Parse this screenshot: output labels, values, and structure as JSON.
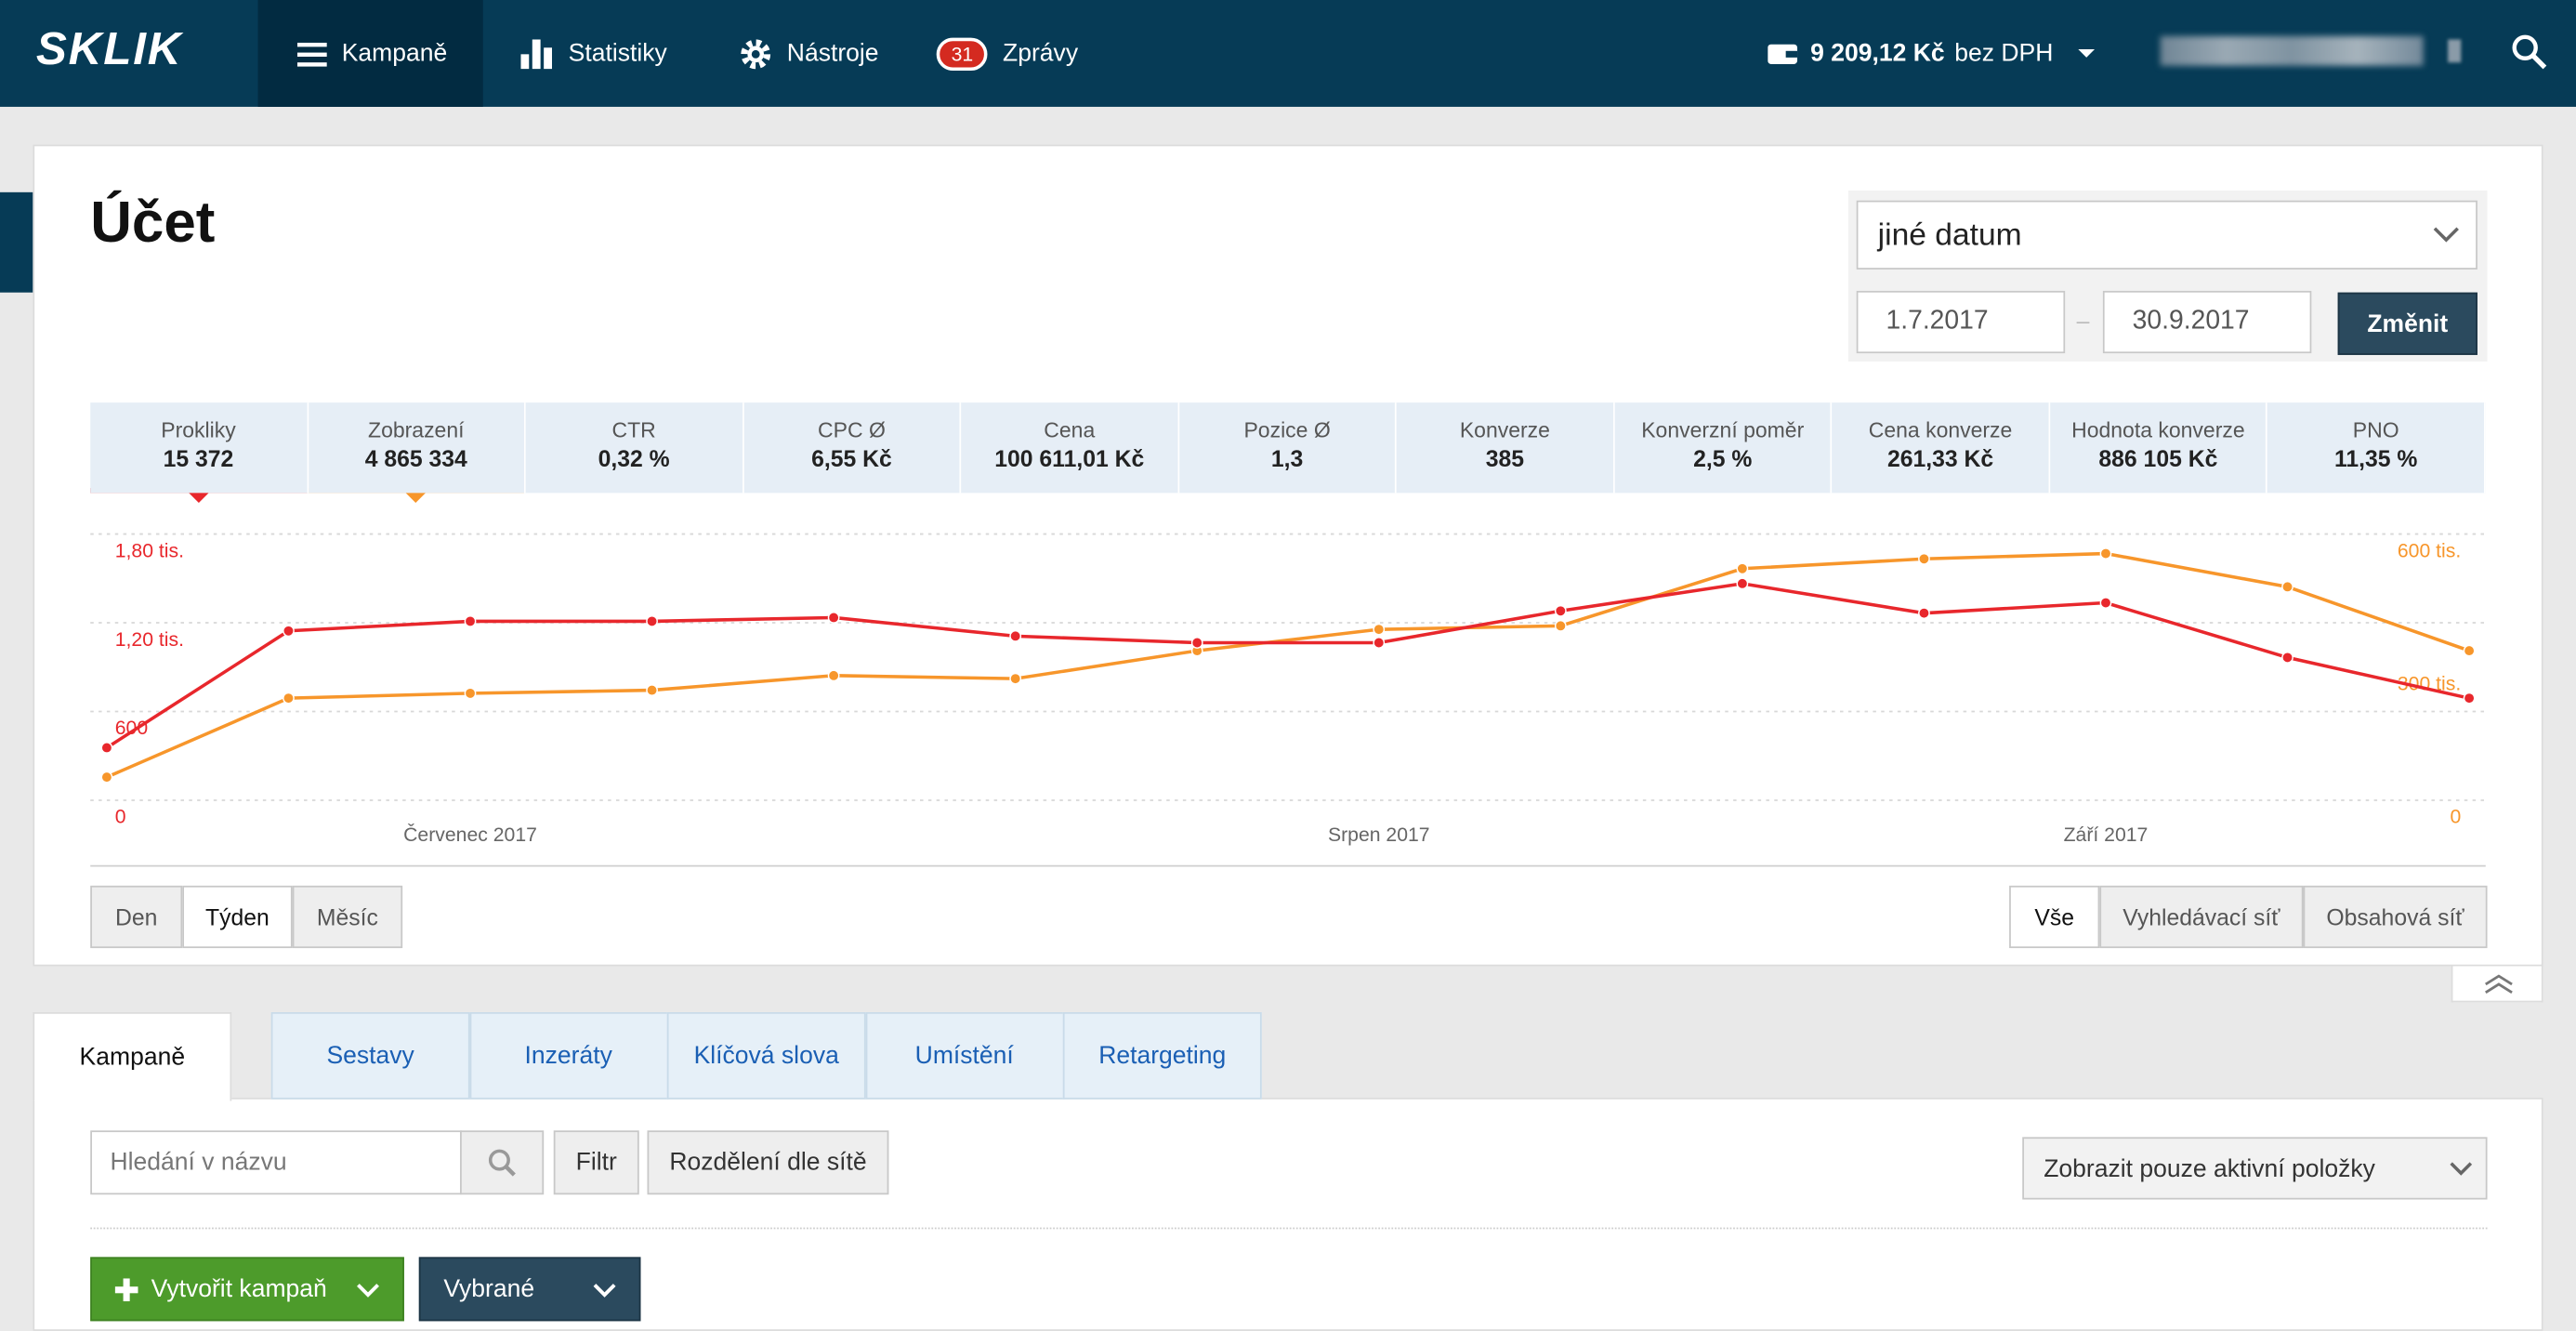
{
  "header": {
    "logo": "SKLIK",
    "nav": [
      "Kampaně",
      "Statistiky",
      "Nástroje",
      "Zprávy"
    ],
    "messages": "31",
    "credit": "9 209,12 Kč",
    "credit_note": "bez DPH"
  },
  "account": {
    "title": "Účet",
    "date_select": "jiné datum",
    "date_from": "1.7.2017",
    "date_to": "30.9.2017",
    "submit": "Změnit"
  },
  "metrics": [
    {
      "label": "Prokliky",
      "value": "15 372"
    },
    {
      "label": "Zobrazení",
      "value": "4 865 334"
    },
    {
      "label": "CTR",
      "value": "0,32 %"
    },
    {
      "label": "CPC Ø",
      "value": "6,55 Kč"
    },
    {
      "label": "Cena",
      "value": "100 611,01 Kč"
    },
    {
      "label": "Pozice Ø",
      "value": "1,3"
    },
    {
      "label": "Konverze",
      "value": "385"
    },
    {
      "label": "Konverzní poměr",
      "value": "2,5 %"
    },
    {
      "label": "Cena konverze",
      "value": "261,33 Kč"
    },
    {
      "label": "Hodnota konverze",
      "value": "886 105 Kč"
    },
    {
      "label": "PNO",
      "value": "11,35 %"
    }
  ],
  "chart_data": {
    "type": "line",
    "categories": [
      null,
      null,
      "Červenec 2017",
      null,
      null,
      null,
      null,
      "Srpen 2017",
      null,
      null,
      null,
      "Září 2017",
      null,
      null
    ],
    "series": [
      {
        "color": "#e8272c",
        "values": [
          355,
          1145,
          1210,
          1210,
          1235,
          1110,
          1065,
          1065,
          1280,
          1465,
          1265,
          1335,
          965,
          690
        ]
      },
      {
        "color": "#f7962b",
        "axis": "y2",
        "values": [
          52000,
          230000,
          241000,
          248000,
          281000,
          274000,
          337000,
          385000,
          393000,
          522000,
          544000,
          556000,
          481000,
          337000
        ]
      }
    ],
    "ylim": [
      0,
      1800
    ],
    "yticks": [
      0,
      600,
      {
        "value": 1200,
        "label": "1,20 tis."
      },
      {
        "value": 1800,
        "label": "1,80 tis."
      }
    ],
    "y2lim": [
      0,
      600000
    ],
    "y2ticks": [
      0,
      {
        "value": 300000,
        "label": "300 tis."
      },
      {
        "value": 600000,
        "label": "600 tis."
      }
    ],
    "grid": true
  },
  "granularity": [
    "Den",
    "Týden",
    "Měsíc"
  ],
  "network": [
    "Vše",
    "Vyhledávací síť",
    "Obsahová síť"
  ],
  "tabs": [
    "Kampaně",
    "Sestavy",
    "Inzeráty",
    "Klíčová slova",
    "Umístění",
    "Retargeting"
  ],
  "toolbar": {
    "search": "Hledání v názvu",
    "filter": "Filtr",
    "split": "Rozdělení dle sítě",
    "active_only": "Zobrazit pouze aktivní položky",
    "create": "Vytvořit kampaň",
    "selected": "Vybrané"
  }
}
